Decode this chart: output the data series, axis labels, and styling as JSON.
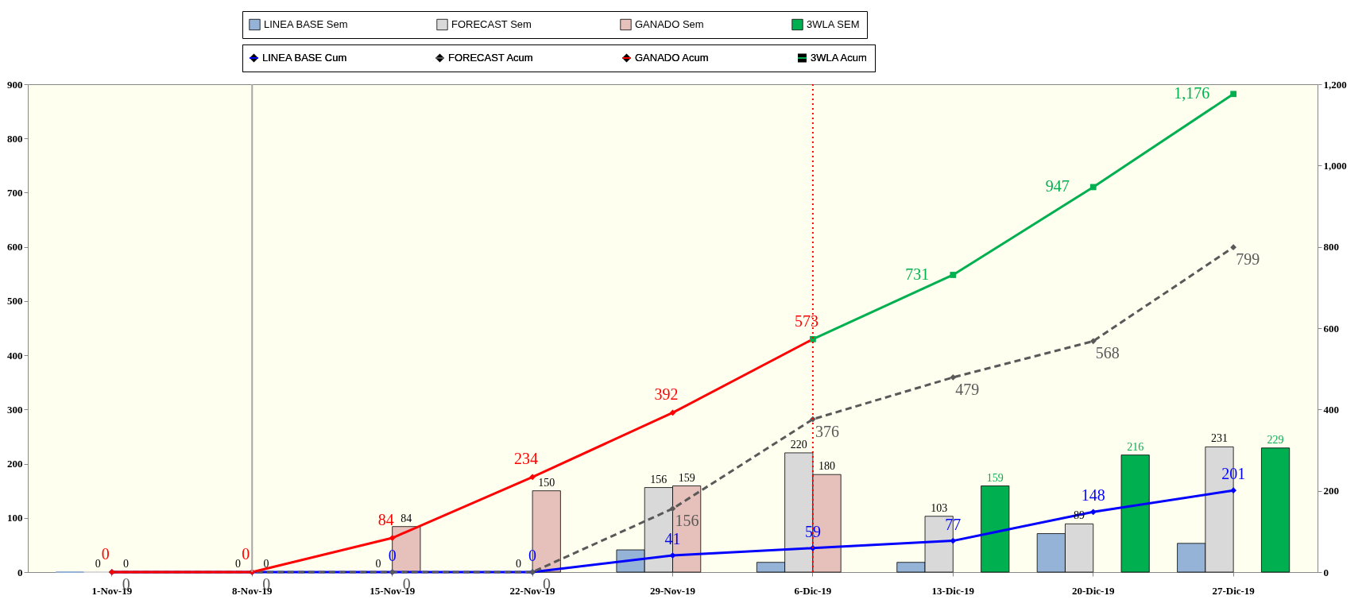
{
  "chart_data": {
    "type": "bar",
    "categories": [
      "1-Nov-19",
      "8-Nov-19",
      "15-Nov-19",
      "22-Nov-19",
      "29-Nov-19",
      "6-Dic-19",
      "13-Dic-19",
      "20-Dic-19",
      "27-Dic-19"
    ],
    "ylim": [
      0,
      900
    ],
    "yticks": [
      0,
      100,
      200,
      300,
      400,
      500,
      600,
      700,
      800,
      900
    ],
    "y2lim": [
      0,
      1200
    ],
    "y2ticks": [
      0,
      200,
      400,
      600,
      800,
      {
        "value": 1000,
        "label": "1,000"
      },
      {
        "value": 1200,
        "label": "1,200"
      }
    ],
    "legend": "top",
    "grid": false,
    "series": [
      {
        "name": "LINEA BASE Sem",
        "color": "#95b3d7",
        "values": [
          0,
          0,
          0,
          0,
          41,
          18,
          18,
          71,
          53
        ]
      },
      {
        "name": "FORECAST Sem",
        "color": "#d9d9d9",
        "values": [
          0,
          0,
          0,
          0,
          156,
          220,
          103,
          89,
          231
        ],
        "value_labels": [
          "0",
          "0",
          "0",
          "0",
          "156",
          "220",
          "103",
          "89",
          "231"
        ]
      },
      {
        "name": "GANADO Sem",
        "color": "#e6c0bb",
        "values": [
          0,
          0,
          84,
          150,
          159,
          180,
          null,
          null,
          null
        ],
        "value_labels": [
          "0",
          "0",
          "84",
          "150",
          "159",
          "180",
          null,
          null,
          null
        ]
      },
      {
        "name": "3WLA SEM",
        "color": "#00b050",
        "values": [
          null,
          null,
          null,
          null,
          null,
          null,
          159,
          216,
          229
        ],
        "value_labels": [
          null,
          null,
          null,
          null,
          null,
          null,
          "159",
          "216",
          "229"
        ]
      },
      {
        "name": "LINEA BASE Cum",
        "type": "line",
        "axis": "y2",
        "color": "#0000ff",
        "marker": "diamond",
        "line_style": "solid",
        "values": [
          0,
          0,
          0,
          0,
          41,
          59,
          77,
          148,
          201
        ],
        "value_labels": [
          null,
          null,
          "0",
          "0",
          "41",
          "59",
          "77",
          "148",
          "201"
        ]
      },
      {
        "name": "FORECAST Acum",
        "type": "line",
        "axis": "y2",
        "color": "#595959",
        "marker": "diamond",
        "line_style": "dashed",
        "values": [
          0,
          0,
          0,
          0,
          156,
          376,
          479,
          568,
          799
        ],
        "value_labels": [
          "0",
          "0",
          "0",
          "0",
          "156",
          "376",
          "479",
          "568",
          "799"
        ]
      },
      {
        "name": "GANADO Acum",
        "type": "line",
        "axis": "y2",
        "color": "#ff0000",
        "marker": "diamond",
        "line_style": "solid",
        "values": [
          0,
          0,
          84,
          234,
          392,
          573,
          null,
          null,
          null
        ],
        "value_labels": [
          "0",
          "0",
          "84",
          "234",
          "392",
          "573",
          null,
          null,
          null
        ]
      },
      {
        "name": "3WLA Acum",
        "type": "line",
        "axis": "y2",
        "color": "#00b050",
        "marker": "square",
        "line_style": "solid",
        "values": [
          null,
          null,
          null,
          null,
          null,
          573,
          731,
          947,
          1176
        ],
        "value_labels": [
          null,
          null,
          null,
          null,
          null,
          null,
          "731",
          "947",
          "1,176"
        ]
      }
    ],
    "ref_lines": [
      {
        "axis": "x",
        "value": "8-Nov-19",
        "color": "#a6a6a6",
        "line_style": "solid"
      },
      {
        "axis": "x",
        "value": "6-Dic-19",
        "color": "#ff0000",
        "line_style": "dotted"
      }
    ]
  }
}
